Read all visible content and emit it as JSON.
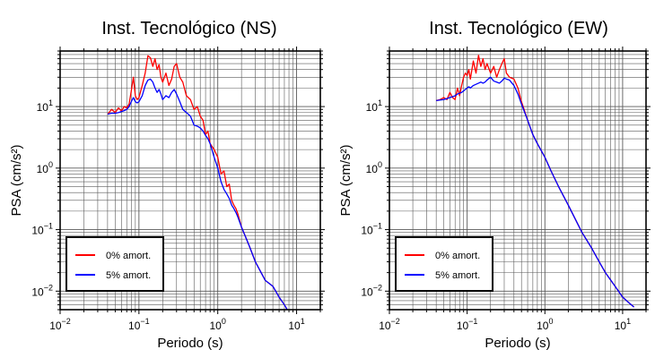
{
  "chart_data": [
    {
      "type": "line",
      "title": "Inst. Tecnológico (NS)",
      "xlabel": "Periodo (s)",
      "ylabel": "PSA (cm/s²)",
      "xscale": "log",
      "yscale": "log",
      "xlim": [
        0.01,
        20
      ],
      "ylim": [
        0.005,
        80
      ],
      "xticks": [
        {
          "base": "10",
          "exp": "−2"
        },
        {
          "base": "10",
          "exp": "−1"
        },
        {
          "base": "10",
          "exp": "0"
        },
        {
          "base": "10",
          "exp": "1"
        }
      ],
      "yticks": [
        {
          "base": "10",
          "exp": "−2"
        },
        {
          "base": "10",
          "exp": "−1"
        },
        {
          "base": "10",
          "exp": "0"
        },
        {
          "base": "10",
          "exp": "1"
        }
      ],
      "grid": true,
      "legend_position": "bottom-left",
      "series": [
        {
          "name": "0% amort.",
          "color": "#ff0000",
          "x": [
            0.04,
            0.045,
            0.05,
            0.055,
            0.06,
            0.065,
            0.07,
            0.075,
            0.08,
            0.085,
            0.09,
            0.095,
            0.1,
            0.11,
            0.12,
            0.13,
            0.14,
            0.15,
            0.16,
            0.17,
            0.18,
            0.19,
            0.2,
            0.22,
            0.24,
            0.26,
            0.28,
            0.3,
            0.33,
            0.36,
            0.4,
            0.45,
            0.5,
            0.55,
            0.6,
            0.65,
            0.7,
            0.75,
            0.8,
            0.9,
            1.0,
            1.1,
            1.2,
            1.3,
            1.4,
            1.5,
            1.6,
            1.7,
            1.8,
            2.0,
            2.5,
            3.0,
            4.0,
            5.0,
            6.0,
            7.0,
            8.0
          ],
          "y": [
            7.5,
            9,
            8,
            9.5,
            8.5,
            10,
            9.5,
            11,
            18,
            30,
            15,
            13,
            14,
            22,
            35,
            67,
            62,
            45,
            60,
            40,
            48,
            30,
            25,
            35,
            22,
            28,
            45,
            50,
            30,
            25,
            15,
            13,
            9,
            10,
            7,
            6,
            3.5,
            4,
            2.5,
            2,
            1.5,
            0.8,
            0.9,
            0.5,
            0.55,
            0.3,
            0.25,
            0.22,
            0.18,
            0.11,
            0.055,
            0.03,
            0.015,
            0.012,
            0.008,
            0.006,
            0.0045
          ]
        },
        {
          "name": "5% amort.",
          "color": "#0000ff",
          "x": [
            0.04,
            0.045,
            0.05,
            0.055,
            0.06,
            0.065,
            0.07,
            0.075,
            0.08,
            0.085,
            0.09,
            0.095,
            0.1,
            0.11,
            0.12,
            0.13,
            0.14,
            0.15,
            0.16,
            0.17,
            0.18,
            0.19,
            0.2,
            0.22,
            0.24,
            0.26,
            0.28,
            0.3,
            0.33,
            0.36,
            0.4,
            0.45,
            0.5,
            0.55,
            0.6,
            0.65,
            0.7,
            0.75,
            0.8,
            0.9,
            1.0,
            1.1,
            1.2,
            1.3,
            1.4,
            1.5,
            1.6,
            1.7,
            1.8,
            2.0,
            2.5,
            3.0,
            4.0,
            5.0,
            6.0,
            7.0,
            8.0
          ],
          "y": [
            7.5,
            7.8,
            7.8,
            8,
            8.3,
            8.6,
            9,
            10,
            12,
            14,
            12,
            11.5,
            12,
            15,
            22,
            27,
            28,
            25,
            20,
            17,
            19,
            16,
            13,
            15,
            14,
            17,
            19,
            16,
            12,
            9,
            8,
            7,
            5,
            4.8,
            4.5,
            4,
            3.4,
            3,
            2.5,
            1.5,
            1.0,
            0.6,
            0.45,
            0.38,
            0.32,
            0.25,
            0.22,
            0.19,
            0.16,
            0.11,
            0.055,
            0.03,
            0.015,
            0.012,
            0.008,
            0.006,
            0.0045
          ]
        }
      ]
    },
    {
      "type": "line",
      "title": "Inst. Tecnológico (EW)",
      "xlabel": "Periodo (s)",
      "ylabel": "PSA (cm/s²)",
      "xscale": "log",
      "yscale": "log",
      "xlim": [
        0.01,
        20
      ],
      "ylim": [
        0.005,
        80
      ],
      "xticks": [
        {
          "base": "10",
          "exp": "−2"
        },
        {
          "base": "10",
          "exp": "−1"
        },
        {
          "base": "10",
          "exp": "0"
        },
        {
          "base": "10",
          "exp": "1"
        }
      ],
      "yticks": [
        {
          "base": "10",
          "exp": "−2"
        },
        {
          "base": "10",
          "exp": "−1"
        },
        {
          "base": "10",
          "exp": "0"
        },
        {
          "base": "10",
          "exp": "1"
        }
      ],
      "grid": true,
      "legend_position": "bottom-left",
      "series": [
        {
          "name": "0% amort.",
          "color": "#ff0000",
          "x": [
            0.04,
            0.045,
            0.05,
            0.055,
            0.06,
            0.065,
            0.07,
            0.075,
            0.08,
            0.085,
            0.09,
            0.095,
            0.1,
            0.105,
            0.11,
            0.12,
            0.13,
            0.14,
            0.15,
            0.16,
            0.17,
            0.18,
            0.2,
            0.22,
            0.24,
            0.26,
            0.28,
            0.3,
            0.32,
            0.35,
            0.4,
            0.45,
            0.5,
            0.6,
            0.7,
            0.8,
            1.0,
            1.2,
            1.5,
            2.0,
            3.0,
            4.0,
            5.0,
            6.0,
            8.0,
            10.0,
            12.0,
            14.0
          ],
          "y": [
            12.5,
            13,
            14,
            13,
            17,
            14,
            13,
            20,
            15,
            22,
            30,
            35,
            32,
            40,
            28,
            55,
            35,
            68,
            45,
            60,
            40,
            50,
            35,
            45,
            30,
            40,
            50,
            60,
            35,
            30,
            28,
            20,
            12,
            6,
            3.5,
            2.5,
            1.5,
            0.9,
            0.5,
            0.25,
            0.09,
            0.05,
            0.03,
            0.02,
            0.012,
            0.008,
            0.0065,
            0.0055
          ]
        },
        {
          "name": "5% amort.",
          "color": "#0000ff",
          "x": [
            0.04,
            0.045,
            0.05,
            0.055,
            0.06,
            0.065,
            0.07,
            0.075,
            0.08,
            0.085,
            0.09,
            0.095,
            0.1,
            0.105,
            0.11,
            0.12,
            0.13,
            0.14,
            0.15,
            0.16,
            0.17,
            0.18,
            0.2,
            0.22,
            0.24,
            0.26,
            0.28,
            0.3,
            0.32,
            0.35,
            0.4,
            0.45,
            0.5,
            0.6,
            0.7,
            0.8,
            1.0,
            1.2,
            1.5,
            2.0,
            3.0,
            4.0,
            5.0,
            6.0,
            8.0,
            10.0,
            12.0,
            14.0
          ],
          "y": [
            12.5,
            12.8,
            13,
            13.5,
            14,
            14.5,
            15,
            16,
            16.5,
            17,
            18,
            19,
            20,
            21,
            20,
            22,
            23,
            24,
            25,
            24,
            25,
            27,
            30,
            26,
            25,
            24,
            26,
            29,
            28,
            27,
            22,
            16,
            11,
            6,
            3.5,
            2.5,
            1.5,
            0.9,
            0.5,
            0.25,
            0.09,
            0.05,
            0.03,
            0.02,
            0.012,
            0.008,
            0.0065,
            0.0055
          ]
        }
      ]
    }
  ]
}
